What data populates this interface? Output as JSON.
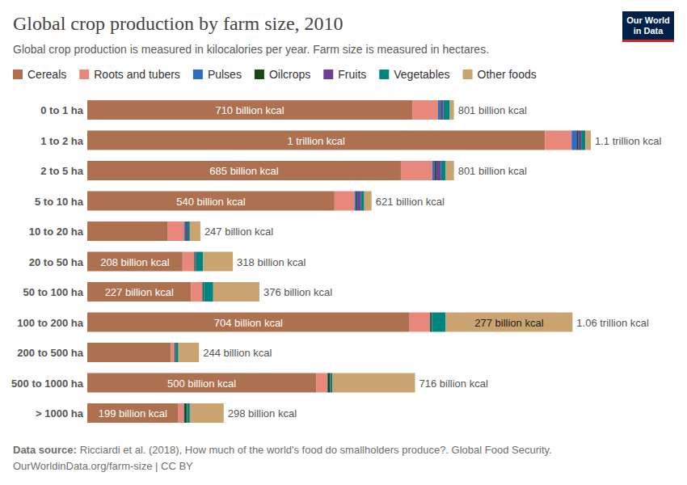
{
  "chart_data": {
    "type": "bar",
    "orientation": "horizontal",
    "stacked": true,
    "tick_labels": "y",
    "title": "Global crop production by farm size, 2010",
    "subtitle": "Global crop production is measured in kilocalories per year. Farm size is measured in hectares.",
    "logo": [
      "Our World",
      "in Data"
    ],
    "source_label": "Data source:",
    "source": "Ricciardi et al. (2018), How much of the world's food do smallholders produce?. Global Food Security.",
    "url_line": "OurWorldinData.org/farm-size | CC BY",
    "categories": [
      "0 to 1 ha",
      "1 to 2 ha",
      "2 to 5 ha",
      "5 to 10 ha",
      "10 to 20 ha",
      "20 to 50 ha",
      "50 to 100 ha",
      "100 to 200 ha",
      "200 to 500 ha",
      "500 to 1000 ha",
      "> 1000 ha"
    ],
    "series": [
      {
        "name": "Cereals",
        "color": "#ad7150",
        "data_labels": true,
        "values": [
          710,
          1000,
          685,
          540,
          176,
          208,
          227,
          704,
          183,
          500,
          199
        ],
        "value_labels": [
          "710 billion kcal",
          "1 trillion kcal",
          "685 billion kcal",
          "540 billion kcal",
          null,
          "208 billion kcal",
          "227 billion kcal",
          "704 billion kcal",
          null,
          "500 billion kcal",
          "199 billion kcal"
        ]
      },
      {
        "name": "Roots and tubers",
        "color": "#e8877b",
        "data_labels": false,
        "values": [
          56,
          58,
          69,
          44,
          35,
          25,
          24,
          44,
          7,
          24,
          12
        ]
      },
      {
        "name": "Pulses",
        "color": "#2f6cc0",
        "data_labels": false,
        "values": [
          5,
          12,
          5,
          4,
          2,
          1,
          1,
          1,
          1,
          1,
          1
        ]
      },
      {
        "name": "Oilcrops",
        "color": "#18470f",
        "data_labels": false,
        "values": [
          2,
          3,
          2,
          2,
          2,
          2,
          2,
          3,
          2,
          5,
          5
        ]
      },
      {
        "name": "Fruits",
        "color": "#6d3e91",
        "data_labels": false,
        "values": [
          5,
          6,
          11,
          8,
          4,
          2,
          1,
          1,
          1,
          1,
          1
        ]
      },
      {
        "name": "Vegetables",
        "color": "#00847e",
        "data_labels": false,
        "values": [
          14,
          9,
          11,
          7,
          5,
          15,
          20,
          30,
          5,
          4,
          6
        ]
      },
      {
        "name": "Other foods",
        "color": "#c9a470",
        "data_labels": true,
        "values": [
          9,
          12,
          18,
          16,
          23,
          65,
          101,
          277,
          45,
          181,
          74
        ],
        "value_labels": [
          null,
          null,
          null,
          null,
          null,
          null,
          null,
          "277 billion kcal",
          null,
          null,
          null
        ]
      }
    ],
    "totals": [
      801,
      1100,
      801,
      621,
      247,
      318,
      376,
      1060,
      244,
      716,
      298
    ],
    "total_labels": [
      "801 billion kcal",
      "1.1 trillion kcal",
      "801 billion kcal",
      "621 billion kcal",
      "247 billion kcal",
      "318 billion kcal",
      "376 billion kcal",
      "1.06 trillion kcal",
      "244 billion kcal",
      "716 billion kcal",
      "298 billion kcal"
    ]
  }
}
